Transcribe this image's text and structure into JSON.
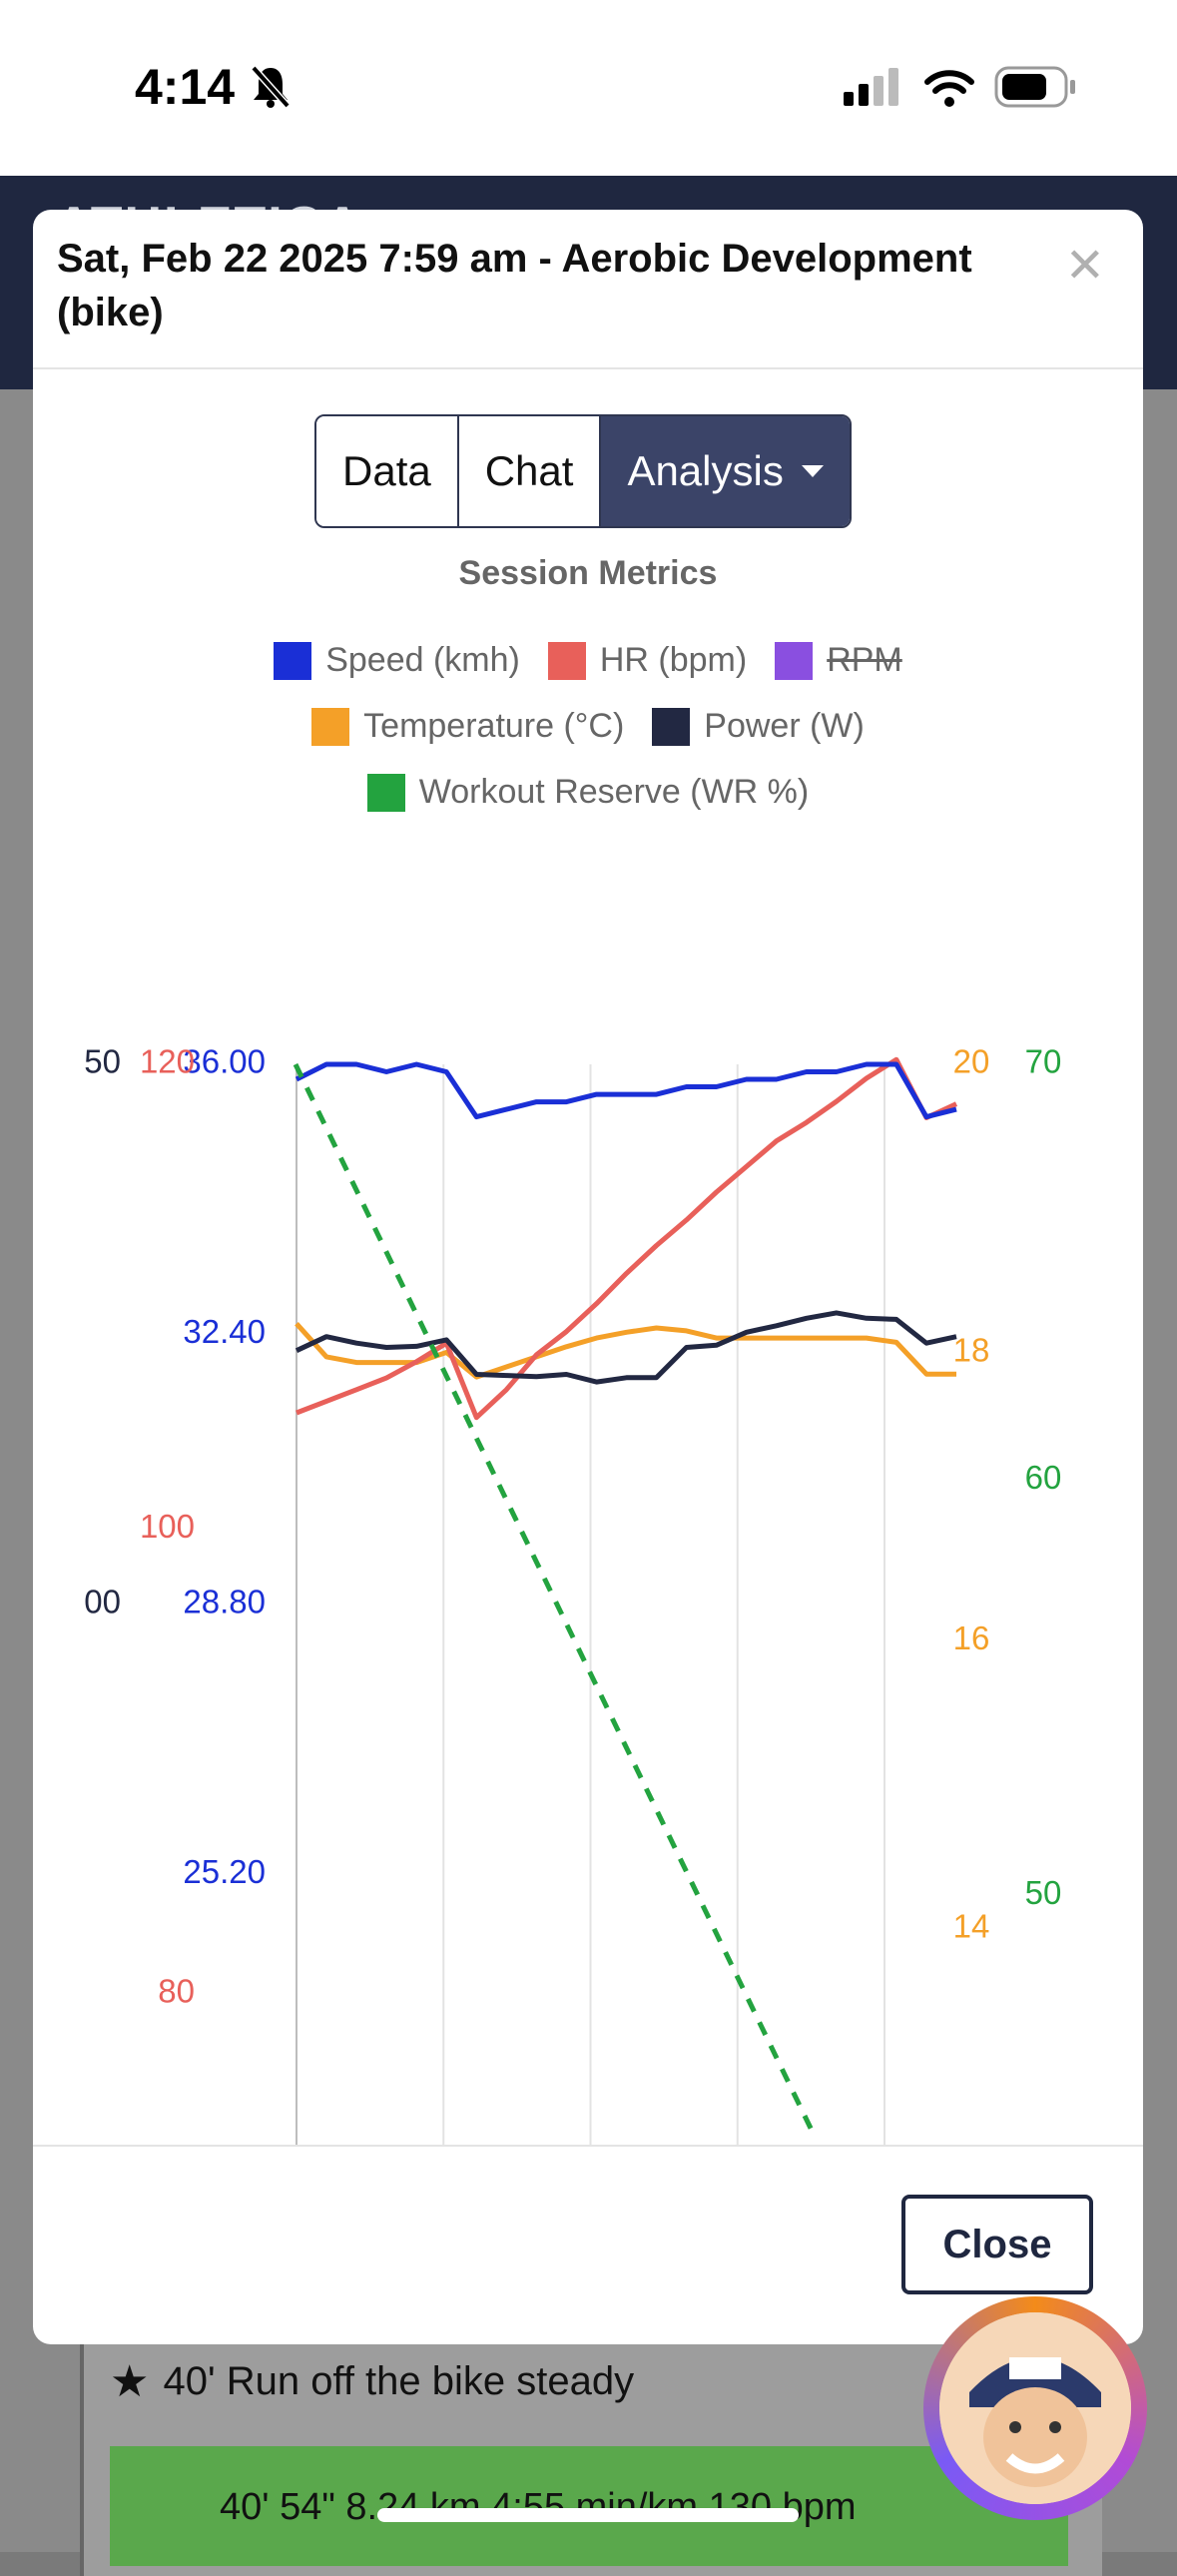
{
  "status": {
    "time": "4:14"
  },
  "app": {
    "logo": "ATHLETICA"
  },
  "modal": {
    "title": "Sat, Feb 22 2025 7:59 am - Aerobic Development (bike)",
    "close_button": "Close"
  },
  "tabs": [
    {
      "label": "Data"
    },
    {
      "label": "Chat"
    },
    {
      "label": "Analysis"
    }
  ],
  "background": {
    "workout_title": "40' Run off the bike steady",
    "workout_stats": "40' 54\"   8.24 km   4:55 min/km   130 bpm"
  },
  "colors": {
    "speed": "#1a2fd6",
    "hr": "#e8605a",
    "rpm": "#8a4fe0",
    "temperature": "#f4a028",
    "power": "#222842",
    "wr": "#23a33f",
    "accent": "#3b4468"
  },
  "chart_data": {
    "type": "line",
    "title": "Session Metrics",
    "legend": [
      {
        "name": "Speed (kmh)",
        "color": "#1a2fd6",
        "hidden": false
      },
      {
        "name": "HR (bpm)",
        "color": "#e8605a",
        "hidden": false
      },
      {
        "name": "RPM",
        "color": "#8a4fe0",
        "hidden": true
      },
      {
        "name": "Temperature (°C)",
        "color": "#f4a028",
        "hidden": false
      },
      {
        "name": "Power (W)",
        "color": "#222842",
        "hidden": false
      },
      {
        "name": "Workout Reserve (WR %)",
        "color": "#23a33f",
        "hidden": false
      }
    ],
    "axes": {
      "speed": {
        "ticks": [
          "36.00",
          "32.40",
          "28.80",
          "25.20"
        ],
        "range": [
          21.6,
          36.0
        ]
      },
      "hr": {
        "ticks": [
          "120",
          "100",
          "80"
        ],
        "range": [
          73.5,
          120
        ]
      },
      "power": {
        "ticks": [
          "50",
          "00"
        ]
      },
      "temperature": {
        "ticks": [
          "20",
          "18",
          "16",
          "14"
        ],
        "range": [
          12.5,
          20
        ]
      },
      "wr": {
        "ticks": [
          "70",
          "60",
          "50"
        ],
        "range": [
          44,
          70
        ]
      }
    },
    "x_count": 6,
    "series": [
      {
        "key": "speed",
        "name": "Speed (kmh)",
        "values": [
          35.8,
          36.0,
          36.0,
          35.9,
          36.0,
          35.9,
          35.3,
          35.4,
          35.5,
          35.5,
          35.6,
          35.6,
          35.6,
          35.7,
          35.7,
          35.8,
          35.8,
          35.9,
          35.9,
          36.0,
          36.0,
          35.3,
          35.4
        ]
      },
      {
        "key": "hr",
        "name": "HR (bpm)",
        "values": [
          105.0,
          105.5,
          106.0,
          106.5,
          107.2,
          108.0,
          104.8,
          106.0,
          107.5,
          108.5,
          109.7,
          111.0,
          112.2,
          113.3,
          114.5,
          115.6,
          116.7,
          117.5,
          118.4,
          119.4,
          120.2,
          117.7,
          118.3
        ]
      },
      {
        "key": "temperature",
        "name": "Temperature (°C)",
        "values": [
          18.2,
          17.97,
          17.93,
          17.93,
          17.93,
          18.0,
          17.83,
          17.9,
          17.97,
          18.04,
          18.1,
          18.14,
          18.17,
          18.15,
          18.1,
          18.1,
          18.1,
          18.1,
          18.1,
          18.1,
          18.07,
          17.85,
          17.85
        ]
      },
      {
        "key": "power",
        "name": "Power (W)",
        "values": [
          0.735,
          0.748,
          0.742,
          0.738,
          0.739,
          0.745,
          0.713,
          0.712,
          0.711,
          0.713,
          0.706,
          0.71,
          0.71,
          0.738,
          0.74,
          0.752,
          0.758,
          0.765,
          0.77,
          0.765,
          0.764,
          0.742,
          0.748
        ]
      },
      {
        "key": "wr",
        "name": "Workout Reserve (WR %)",
        "values": [
          70.0,
          44.2
        ]
      }
    ]
  }
}
